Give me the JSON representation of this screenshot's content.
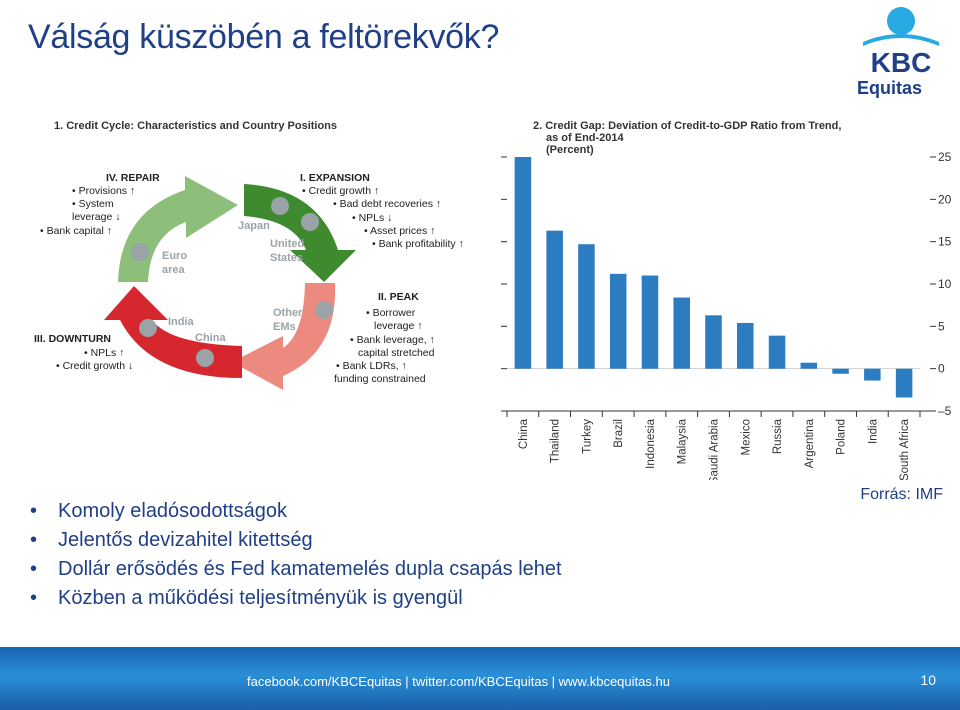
{
  "slide": {
    "title": "Válság küszöbén a feltörekvők?",
    "logo": {
      "brand": "KBC",
      "sub": "Equitas",
      "color": "#1f3f86",
      "accent": "#27a9e1"
    }
  },
  "cycle_panel": {
    "title": "1. Credit Cycle: Characteristics and Country Positions",
    "phases": [
      {
        "name": "IV. REPAIR",
        "items": [
          "• Provisions ↑",
          "• System",
          "leverage ↓",
          "• Bank capital ↑"
        ],
        "color": "#8dbf7b"
      },
      {
        "name": "I. EXPANSION",
        "items": [
          "• Credit growth ↑",
          "• Bad debt recoveries ↑",
          "• NPLs ↓",
          "• Asset prices ↑",
          "• Bank profitability ↑"
        ],
        "color": "#3f8a2e"
      },
      {
        "name": "II. PEAK",
        "items": [
          "• Borrower",
          "leverage ↑",
          "• Bank leverage, ↑",
          "capital stretched",
          "• Bank LDRs, ↑",
          "funding constrained"
        ],
        "color": "#ec8a7f"
      },
      {
        "name": "III. DOWNTURN",
        "items": [
          "• NPLs ↑",
          "• Credit growth ↓"
        ],
        "color": "#d6262e"
      }
    ],
    "country_labels": [
      "Japan",
      "United",
      "States",
      "Euro",
      "area",
      "Other",
      "EMs",
      "India",
      "China"
    ]
  },
  "chart_panel": {
    "title_lines": [
      "2. Credit Gap: Deviation of Credit-to-GDP Ratio from Trend,",
      "as of End-2014",
      "(Percent)"
    ]
  },
  "chart_data": {
    "type": "bar",
    "title": "2. Credit Gap: Deviation of Credit-to-GDP Ratio from Trend, as of End-2014 (Percent)",
    "categories": [
      "China",
      "Thailand",
      "Turkey",
      "Brazil",
      "Indonesia",
      "Malaysia",
      "Saudi Arabia",
      "Mexico",
      "Russia",
      "Argentina",
      "Poland",
      "India",
      "South Africa"
    ],
    "values": [
      25,
      16.3,
      14.7,
      11.2,
      11,
      8.4,
      6.3,
      5.4,
      3.9,
      0.7,
      -0.6,
      -1.4,
      -3.4
    ],
    "ylim": [
      -5,
      25
    ],
    "yticks": [
      25,
      20,
      15,
      10,
      5,
      0,
      -5
    ],
    "ytick_labels": [
      "25",
      "20",
      "15",
      "10",
      "5",
      "0",
      "–5"
    ],
    "bar_color": "#2c7cc1",
    "grid": false
  },
  "bullets": [
    "Komoly eladósodottságok",
    "Jelentős devizahitel kitettség",
    "Dollár erősödés és Fed kamatemelés dupla csapás lehet",
    "Közben a működési teljesítményük is gyengül"
  ],
  "bullet_symbol": "•",
  "source": "Forrás: IMF",
  "footer": {
    "links": "facebook.com/KBCEquitas  |  twitter.com/KBCEquitas  |  www.kbcequitas.hu",
    "page": "10"
  }
}
